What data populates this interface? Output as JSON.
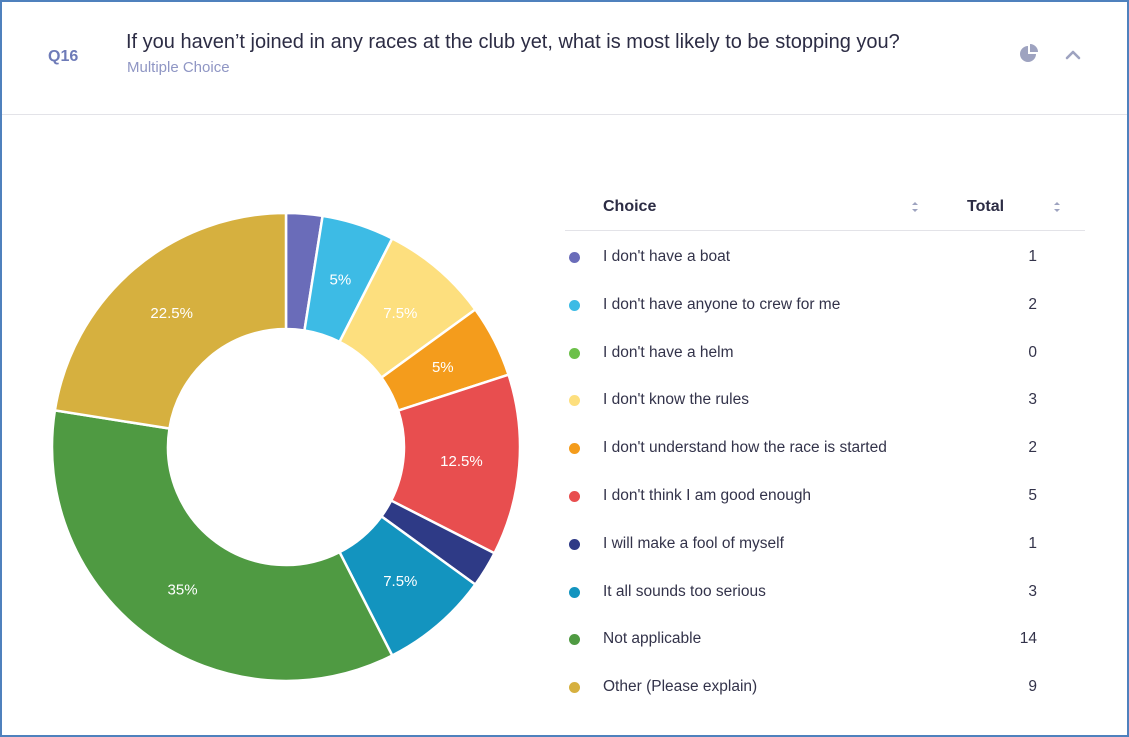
{
  "question": {
    "number": "Q16",
    "title": "If you haven’t joined in any races at the club yet, what is most likely to be stopping you?",
    "type": "Multiple Choice"
  },
  "icons": {
    "chart_toggle": "pie-chart-icon",
    "collapse": "chevron-up-icon",
    "sort": "sort-icon"
  },
  "table": {
    "headers": {
      "choice": "Choice",
      "total": "Total"
    }
  },
  "chart_data": {
    "type": "pie",
    "donut": true,
    "categories": [
      "I don't have a boat",
      "I don't have anyone to crew for me",
      "I don't have a helm",
      "I don't know the rules",
      "I don't understand how the race is started",
      "I don't think I am good enough",
      "I will make a fool of myself",
      "It all sounds too serious",
      "Not applicable",
      "Other (Please explain)"
    ],
    "values": [
      1,
      2,
      0,
      3,
      2,
      5,
      1,
      3,
      14,
      9
    ],
    "labels": [
      "",
      "5%",
      "",
      "7.5%",
      "5%",
      "12.5%",
      "",
      "7.5%",
      "35%",
      "22.5%"
    ],
    "colors": [
      "#6a6cb9",
      "#3dbbe5",
      "#6cc04a",
      "#fddf7e",
      "#f49c1c",
      "#e84e4f",
      "#2e3a86",
      "#1394bf",
      "#4f9a42",
      "#d6b03f"
    ],
    "label_colors": [
      "#ffffff",
      "#ffffff",
      "#ffffff",
      "#ffffff",
      "#ffffff",
      "#ffffff",
      "#ffffff",
      "#ffffff",
      "#ffffff",
      "#ffffff"
    ]
  }
}
